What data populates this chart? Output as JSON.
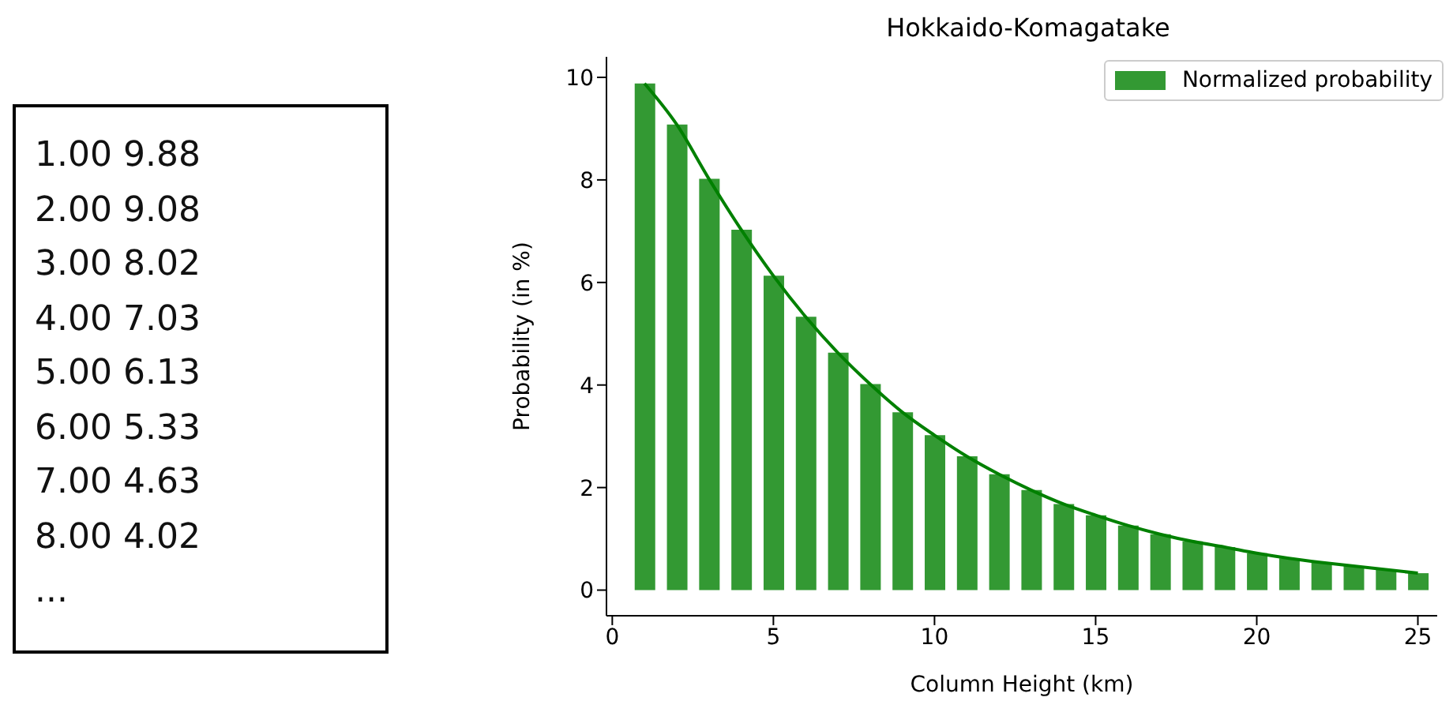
{
  "chart_data": [
    {
      "type": "other",
      "annotations": [
        "1.00 9.88",
        "2.00 9.08",
        "3.00 8.02",
        "4.00 7.03",
        "5.00 6.13",
        "6.00 5.33",
        "7.00 4.63",
        "8.00 4.02",
        "..."
      ]
    },
    {
      "type": "bar",
      "title": "Hokkaido-Komagatake",
      "xlabel": "Column Height (km)",
      "ylabel": "Probability (in %)",
      "x": [
        1,
        2,
        3,
        4,
        5,
        6,
        7,
        8,
        9,
        10,
        11,
        12,
        13,
        14,
        15,
        16,
        17,
        18,
        19,
        20,
        21,
        22,
        23,
        24,
        25
      ],
      "series": [
        {
          "name": "Normalized probability",
          "color": "#339933",
          "values": [
            9.88,
            9.08,
            8.02,
            7.03,
            6.13,
            5.33,
            4.63,
            4.02,
            3.47,
            3.02,
            2.61,
            2.26,
            1.95,
            1.68,
            1.46,
            1.26,
            1.09,
            0.95,
            0.84,
            0.72,
            0.62,
            0.54,
            0.47,
            0.4,
            0.33
          ]
        },
        {
          "type": "line",
          "color": "#008000",
          "values": [
            9.88,
            9.08,
            8.02,
            7.03,
            6.13,
            5.33,
            4.63,
            4.02,
            3.47,
            3.02,
            2.61,
            2.26,
            1.95,
            1.68,
            1.46,
            1.26,
            1.09,
            0.95,
            0.84,
            0.72,
            0.62,
            0.54,
            0.47,
            0.4,
            0.33
          ]
        }
      ],
      "xlim": [
        -0.18,
        25.6
      ],
      "xticks": [
        0,
        5,
        10,
        15,
        20,
        25
      ],
      "ylim": [
        -0.5,
        10.4
      ],
      "yticks": [
        0,
        2,
        4,
        6,
        8,
        10
      ],
      "grid": false,
      "legend": "top right"
    }
  ]
}
